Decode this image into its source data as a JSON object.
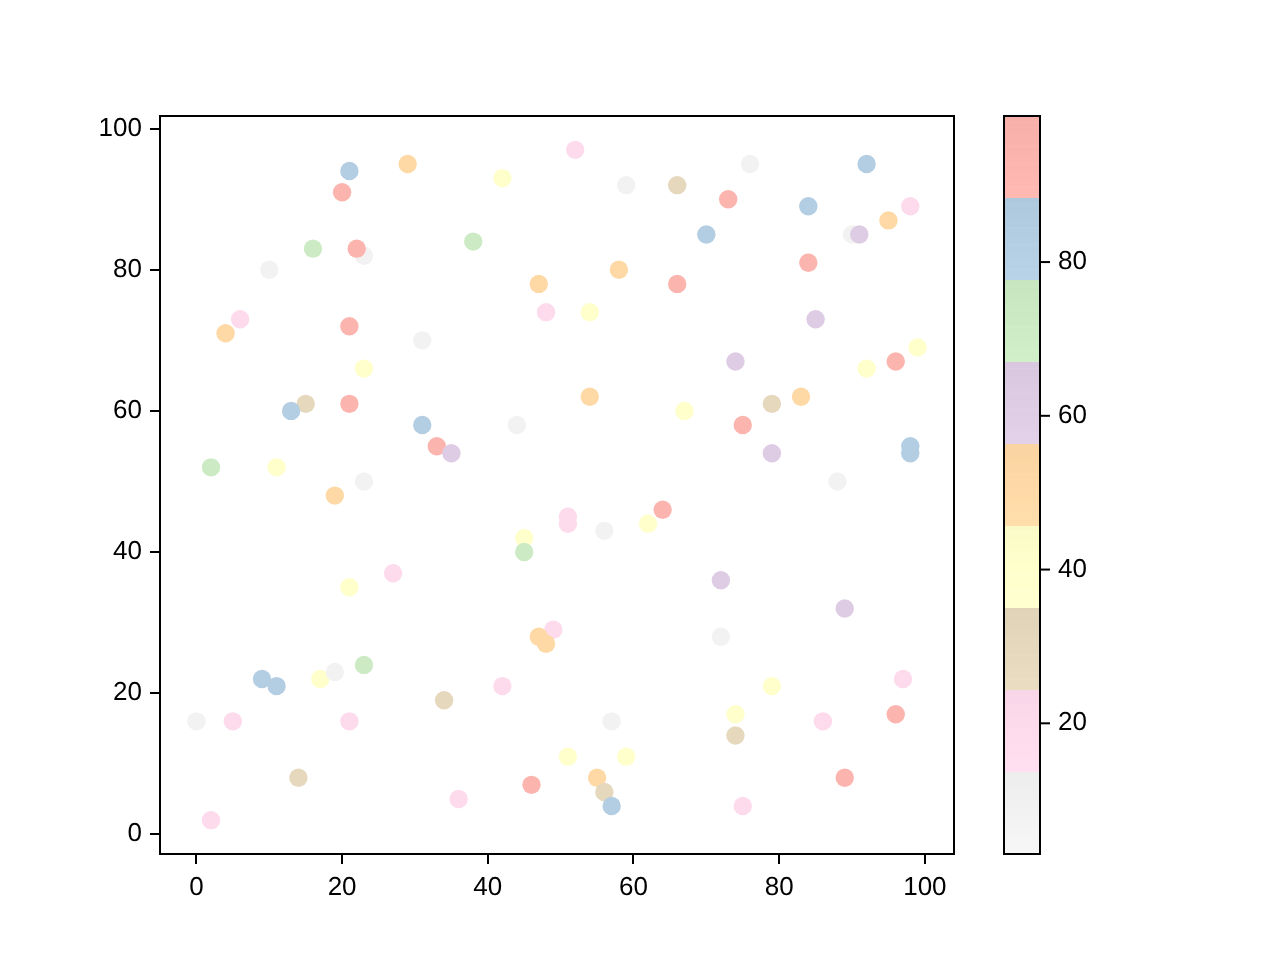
{
  "chart_data": {
    "type": "scatter",
    "marker": "circle",
    "x": [
      21,
      29,
      42,
      20,
      52,
      59,
      66,
      76,
      92,
      73,
      84,
      98,
      95,
      90,
      91,
      70,
      16,
      23,
      22,
      38,
      10,
      47,
      58,
      66,
      84,
      6,
      4,
      48,
      54,
      21,
      31,
      85,
      23,
      74,
      92,
      96,
      99,
      15,
      13,
      21,
      31,
      44,
      33,
      35,
      2,
      11,
      23,
      19,
      45,
      45,
      27,
      21,
      54,
      67,
      75,
      79,
      83,
      79,
      98,
      98,
      88,
      64,
      51,
      51,
      56,
      62,
      72,
      89,
      49,
      47,
      48,
      9,
      11,
      17,
      19,
      23,
      0,
      5,
      21,
      34,
      42,
      14,
      46,
      36,
      2,
      72,
      97,
      79,
      74,
      74,
      86,
      96,
      57,
      51,
      59,
      55,
      56,
      57,
      75,
      89
    ],
    "values": [
      94,
      95,
      93,
      91,
      97,
      92,
      92,
      95,
      95,
      90,
      89,
      89,
      87,
      85,
      85,
      85,
      83,
      82,
      83,
      84,
      80,
      78,
      80,
      78,
      81,
      73,
      71,
      74,
      74,
      72,
      70,
      73,
      66,
      67,
      66,
      67,
      69,
      61,
      60,
      61,
      58,
      58,
      55,
      54,
      52,
      52,
      50,
      48,
      42,
      40,
      37,
      35,
      62,
      60,
      58,
      61,
      62,
      54,
      55,
      54,
      50,
      46,
      45,
      44,
      43,
      44,
      36,
      32,
      29,
      28,
      27,
      22,
      21,
      22,
      23,
      24,
      16,
      16,
      16,
      19,
      21,
      8,
      7,
      5,
      2,
      28,
      22,
      21,
      17,
      14,
      16,
      17,
      16,
      11,
      11,
      8,
      6,
      4,
      4,
      8
    ],
    "cvalues": [
      83,
      51,
      40,
      94,
      19,
      8,
      30,
      8,
      83,
      94,
      83,
      19,
      51,
      8,
      62,
      83,
      72,
      8,
      94,
      72,
      8,
      51,
      51,
      94,
      94,
      19,
      51,
      19,
      40,
      94,
      8,
      62,
      40,
      62,
      40,
      94,
      40,
      30,
      83,
      94,
      83,
      8,
      94,
      62,
      72,
      40,
      8,
      51,
      40,
      72,
      19,
      40,
      51,
      40,
      94,
      30,
      51,
      62,
      83,
      83,
      8,
      94,
      19,
      19,
      8,
      40,
      62,
      62,
      19,
      51,
      51,
      83,
      83,
      40,
      8,
      72,
      8,
      19,
      19,
      30,
      19,
      30,
      94,
      19,
      19,
      8,
      19,
      40,
      40,
      30,
      19,
      94,
      8,
      40,
      40,
      51,
      30,
      83,
      19,
      94
    ],
    "clim": [
      3,
      99
    ],
    "cticks": [
      20,
      40,
      60,
      80
    ],
    "xlim": [
      -5,
      104
    ],
    "ylim": [
      -2.8,
      101.8
    ],
    "xticks": [
      0,
      20,
      40,
      60,
      80,
      100
    ],
    "yticks": [
      0,
      20,
      40,
      60,
      80,
      100
    ]
  }
}
